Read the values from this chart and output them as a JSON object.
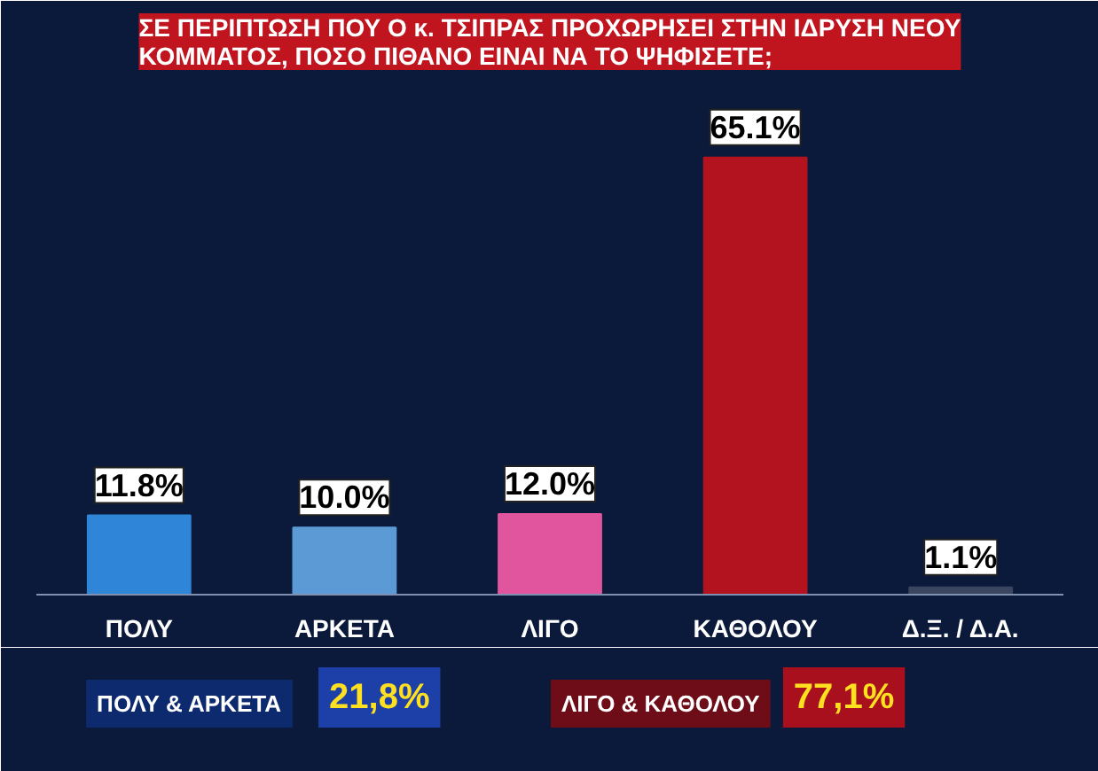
{
  "chart_data": {
    "type": "bar",
    "title": "ΣΕ ΠΕΡΙΠΤΩΣΗ ΠΟΥ Ο κ. ΤΣΙΠΡΑΣ ΠΡΟΧΩΡΗΣΕΙ ΣΤΗΝ ΙΔΡΥΣΗ ΝΕΟΥ ΚΟΜΜΑΤΟΣ, ΠΟΣΟ ΠΙΘΑΝΟ ΕΙΝΑΙ ΝΑ ΤΟ ΨΗΦΙΣΕΤΕ;",
    "categories": [
      "ΠΟΛΥ",
      "ΑΡΚΕΤΑ",
      "ΛΙΓΟ",
      "ΚΑΘΟΛΟΥ",
      "Δ.Ξ. / Δ.Α."
    ],
    "values": [
      11.8,
      10.0,
      12.0,
      65.1,
      1.1
    ],
    "colors": [
      "#2f86d8",
      "#5c9ad6",
      "#e0559e",
      "#b3121f",
      "#3a4660"
    ],
    "value_labels": [
      "11.8%",
      "10.0%",
      "12.0%",
      "65.1%",
      "1.1%"
    ],
    "annotations": [
      "ΠΟΛΥ & ΑΡΚΕΤΑ",
      "21,8%",
      "ΛΙΓΟ & ΚΑΘΟΛΟΥ",
      "77,1%"
    ],
    "tick_labels": "x",
    "grid": false
  }
}
